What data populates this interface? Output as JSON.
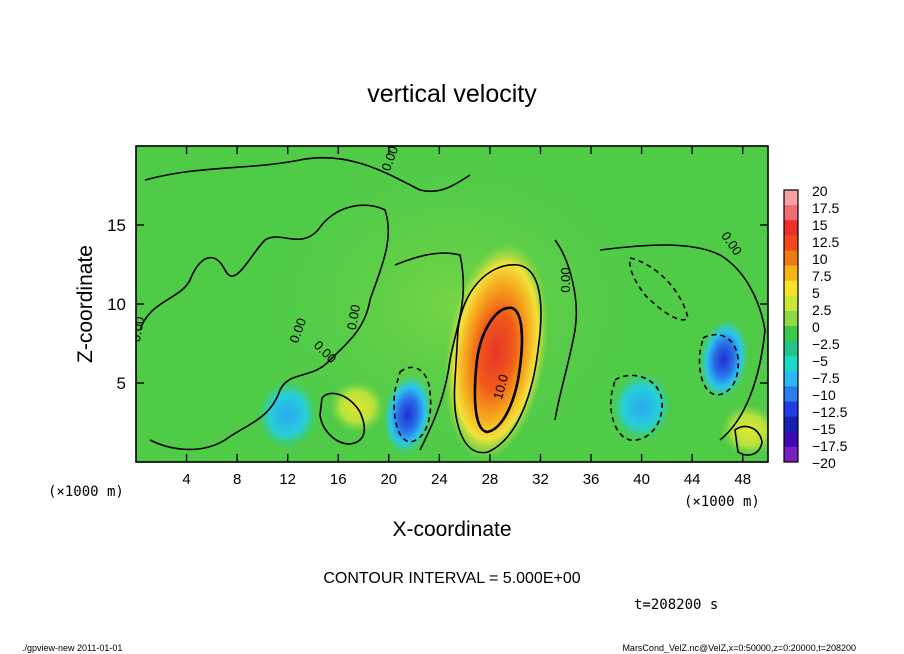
{
  "chart_data": {
    "type": "heatmap",
    "title": "vertical velocity",
    "xlabel": "X-coordinate",
    "ylabel": "Z-coordinate",
    "x_unit": "(×1000 m)",
    "z_unit": "(×1000 m)",
    "xlim": [
      0,
      50
    ],
    "ylim": [
      0,
      20
    ],
    "x_ticks": [
      "4",
      "8",
      "12",
      "16",
      "20",
      "24",
      "28",
      "32",
      "36",
      "40",
      "44",
      "48"
    ],
    "y_ticks": [
      "5",
      "10",
      "15"
    ],
    "contour_interval": "CONTOUR INTERVAL = 5.000E+00",
    "time": "t=208200 s",
    "contour_labels": [
      "0.00",
      "0.00",
      "0.00",
      "0.00",
      "0.00",
      "0.00",
      "0.00",
      "10.0"
    ],
    "colorbar": {
      "labels": [
        "20",
        "17.5",
        "15",
        "12.5",
        "10",
        "7.5",
        "5",
        "2.5",
        "0",
        "−2.5",
        "−5",
        "−7.5",
        "−10",
        "−12.5",
        "−15",
        "−17.5",
        "−20"
      ],
      "colors": [
        "#f7a1a4",
        "#f16c73",
        "#ee2d2d",
        "#f04a1c",
        "#f27a16",
        "#f7b31a",
        "#f9e32a",
        "#c9e63a",
        "#8fd847",
        "#3ec84a",
        "#21c48a",
        "#1cd9c6",
        "#2bb9f5",
        "#2b7df0",
        "#1f3fe4",
        "#1522b0",
        "#3d0ab3",
        "#7a20bd"
      ]
    },
    "features": [
      {
        "kind": "updraft",
        "x": 28.5,
        "z": 7.0,
        "peak": 15
      },
      {
        "kind": "downdraft",
        "x": 21.5,
        "z": 3.0,
        "peak": -12
      },
      {
        "kind": "downdraft",
        "x": 46.5,
        "z": 6.5,
        "peak": -10
      },
      {
        "kind": "downdraft",
        "x": 40.0,
        "z": 3.5,
        "peak": -6
      },
      {
        "kind": "downdraft",
        "x": 12.0,
        "z": 3.0,
        "peak": -5
      },
      {
        "kind": "updraft",
        "x": 17.5,
        "z": 3.5,
        "peak": 5
      },
      {
        "kind": "updraft",
        "x": 48.5,
        "z": 2.0,
        "peak": 5
      }
    ]
  },
  "footer": {
    "left": "./gpview-new   2011-01-01",
    "right": "MarsCond_VelZ.nc@VelZ,x=0:50000,z=0:20000,t=208200"
  }
}
